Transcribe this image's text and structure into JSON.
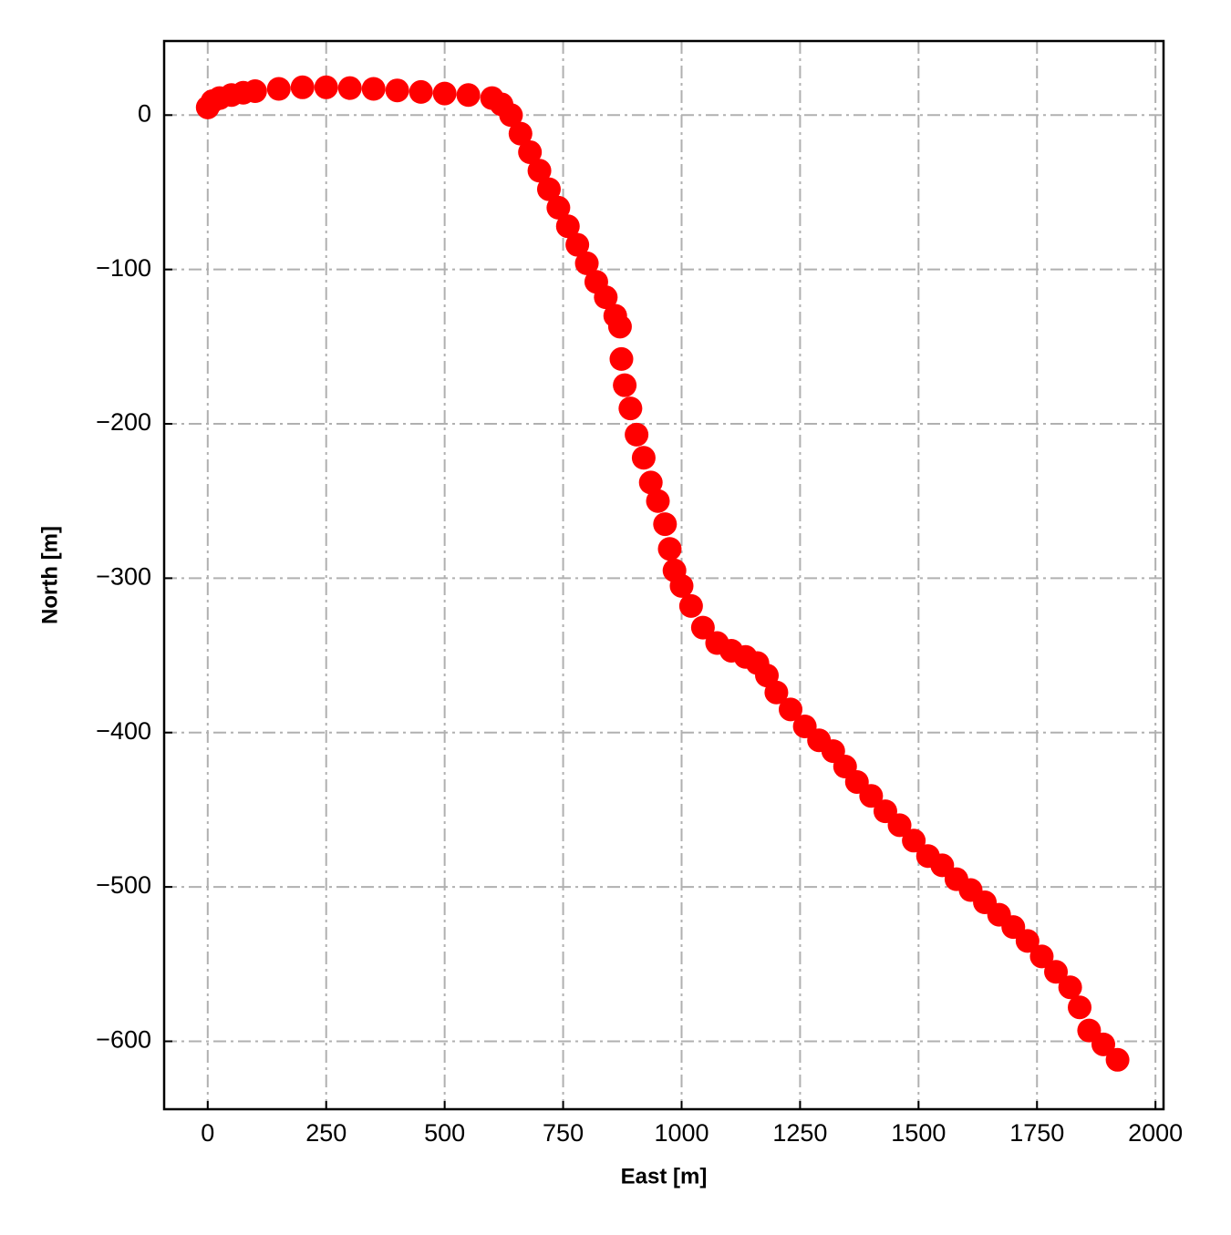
{
  "chart_data": {
    "type": "scatter",
    "x_label": "East [m]",
    "y_label": "North [m]",
    "color": "#ff0000",
    "grid": true,
    "xlim": [
      -92,
      2017
    ],
    "ylim": [
      -644,
      48
    ],
    "xticks": [
      0,
      250,
      500,
      750,
      1000,
      1250,
      1500,
      1750,
      2000
    ],
    "yticks": [
      {
        "value": -600,
        "label": "−600"
      },
      {
        "value": -500,
        "label": "−500"
      },
      {
        "value": -400,
        "label": "−400"
      },
      {
        "value": -300,
        "label": "−300"
      },
      {
        "value": -200,
        "label": "−200"
      },
      {
        "value": -100,
        "label": "−100"
      },
      0
    ],
    "x": [
      0,
      10,
      25,
      50,
      75,
      100,
      150,
      200,
      250,
      300,
      350,
      400,
      450,
      500,
      550,
      600,
      620,
      640,
      660,
      680,
      700,
      720,
      740,
      760,
      780,
      800,
      820,
      840,
      860,
      870,
      873,
      880,
      892,
      905,
      920,
      935,
      950,
      965,
      975,
      985,
      1000,
      1020,
      1045,
      1075,
      1105,
      1135,
      1160,
      1180,
      1200,
      1230,
      1260,
      1290,
      1320,
      1345,
      1370,
      1400,
      1430,
      1460,
      1490,
      1520,
      1550,
      1580,
      1610,
      1640,
      1670,
      1700,
      1730,
      1760,
      1790,
      1820,
      1840,
      1860,
      1890,
      1920
    ],
    "y": [
      5,
      9,
      11,
      13,
      14.5,
      15.5,
      17,
      18,
      18,
      17.5,
      17,
      16,
      15,
      14,
      13,
      11,
      7,
      0,
      -12,
      -24,
      -36,
      -48,
      -60,
      -72,
      -84,
      -96,
      -108,
      -118,
      -130,
      -137,
      -158,
      -175,
      -190,
      -207,
      -222,
      -238,
      -250,
      -265,
      -281,
      -295,
      -305,
      -318,
      -332,
      -342,
      -347,
      -351,
      -355,
      -363,
      -374,
      -385,
      -396,
      -405,
      -412,
      -422,
      -432,
      -441,
      -451,
      -460,
      -470,
      -480,
      -486,
      -495,
      -502,
      -510,
      -518,
      -526,
      -535,
      -545,
      -555,
      -565,
      -578,
      -593,
      -602,
      -612
    ]
  }
}
